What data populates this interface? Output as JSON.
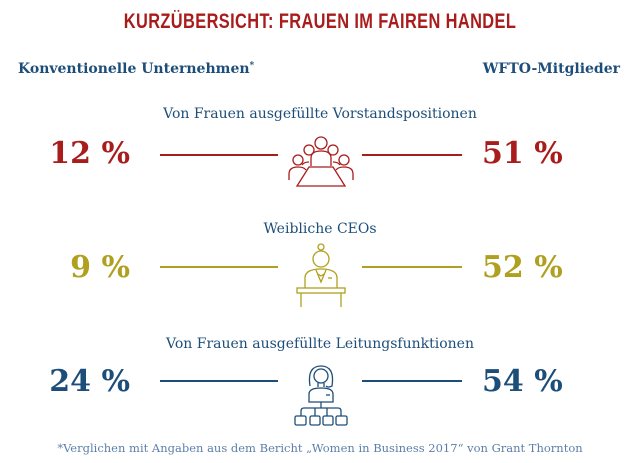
{
  "title": "KURZÜBERSICHT: FRAUEN IM FAIREN HANDEL",
  "columns": {
    "left": "Konventionelle Unternehmen",
    "left_mark": "*",
    "right": "WFTO-Mitglieder"
  },
  "rows": [
    {
      "label": "Von Frauen ausgefüllte Vorstandspositionen",
      "left_value": "12 %",
      "right_value": "51 %",
      "color": "#a81c1c",
      "icon": "board-meeting-icon"
    },
    {
      "label": "Weibliche CEOs",
      "left_value": "9 %",
      "right_value": "52 %",
      "color": "#b0a020",
      "icon": "female-ceo-desk-icon"
    },
    {
      "label": "Von Frauen ausgefüllte Leitungsfunktionen",
      "left_value": "24 %",
      "right_value": "54 %",
      "color": "#1d4e79",
      "icon": "female-manager-org-chart-icon"
    }
  ],
  "footnote": "*Verglichen mit Angaben aus dem Bericht „Women in Business 2017“ von Grant Thornton",
  "colors": {
    "title": "#a81c1c",
    "heading": "#1d4e79",
    "footnote": "#5c7fa8"
  }
}
